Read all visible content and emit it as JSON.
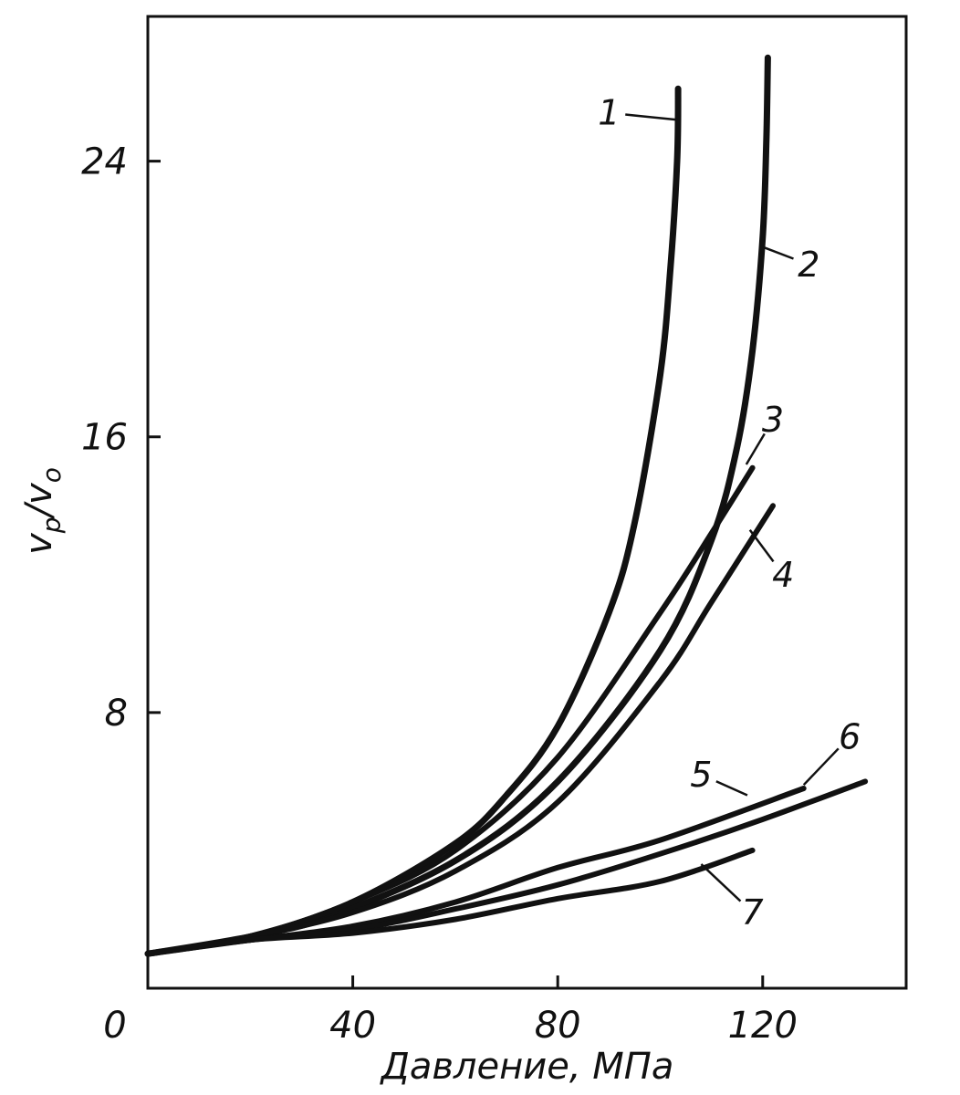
{
  "chart_data": {
    "type": "line",
    "title": "",
    "xlabel": "Давление, МПа",
    "ylabel": "v_p/v_o",
    "ylabel_parts": {
      "main1": "v",
      "sub1": "p",
      "slash": "/",
      "main2": "v",
      "sub2": "o"
    },
    "xlim": [
      0,
      148
    ],
    "ylim": [
      0,
      28.2
    ],
    "x_ticks": [
      {
        "value": 0,
        "label": "0"
      },
      {
        "value": 40,
        "label": "40"
      },
      {
        "value": 80,
        "label": "80"
      },
      {
        "value": 120,
        "label": "120"
      }
    ],
    "y_ticks": [
      {
        "value": 8,
        "label": "8"
      },
      {
        "value": 16,
        "label": "16"
      },
      {
        "value": 24,
        "label": "24"
      }
    ],
    "grid": false,
    "legend": "none",
    "series": [
      {
        "name": "1",
        "x": [
          0,
          20,
          40,
          60,
          70,
          80,
          90,
          95,
          100,
          102,
          103.3,
          103.5
        ],
        "y": [
          1.0,
          1.5,
          2.5,
          4.2,
          5.6,
          7.6,
          10.9,
          13.5,
          17.8,
          20.9,
          24.0,
          26.1
        ]
      },
      {
        "name": "2",
        "x": [
          0,
          20,
          36,
          60,
          80,
          100,
          110,
          115,
          118,
          120,
          120.7,
          121
        ],
        "y": [
          1.0,
          1.5,
          2.1,
          3.7,
          6.0,
          9.8,
          13.0,
          15.7,
          18.5,
          21.8,
          24.5,
          27.0
        ]
      },
      {
        "name": "3",
        "x": [
          0,
          20,
          40,
          60,
          80,
          100,
          110,
          118
        ],
        "y": [
          1.0,
          1.5,
          2.5,
          4.0,
          6.7,
          10.9,
          13.2,
          15.1
        ]
      },
      {
        "name": "4",
        "x": [
          0,
          20,
          40,
          60,
          80,
          100,
          110,
          122
        ],
        "y": [
          1.0,
          1.5,
          2.2,
          3.4,
          5.4,
          8.9,
          11.2,
          14.0
        ]
      },
      {
        "name": "5",
        "x": [
          0,
          20,
          40,
          60,
          80,
          100,
          128
        ],
        "y": [
          1.0,
          1.4,
          1.8,
          2.5,
          3.5,
          4.3,
          5.8
        ]
      },
      {
        "name": "6",
        "x": [
          0,
          20,
          40,
          60,
          80,
          100,
          120,
          140
        ],
        "y": [
          1.0,
          1.4,
          1.7,
          2.3,
          3.0,
          3.9,
          4.9,
          6.0
        ]
      },
      {
        "name": "7",
        "x": [
          0,
          20,
          40,
          60,
          80,
          100,
          118
        ],
        "y": [
          1.0,
          1.4,
          1.6,
          2.0,
          2.6,
          3.1,
          4.0
        ]
      }
    ],
    "curve_labels": [
      {
        "series": "1",
        "text": "1",
        "at": [
          103.3,
          25.2
        ],
        "text_at": [
          90,
          25.4
        ]
      },
      {
        "series": "2",
        "text": "2",
        "at": [
          120.2,
          21.5
        ],
        "text_at": [
          129,
          21.0
        ]
      },
      {
        "series": "3",
        "text": "3",
        "at": [
          116.8,
          15.2
        ],
        "text_at": [
          122,
          16.5
        ]
      },
      {
        "series": "4",
        "text": "4",
        "at": [
          117.5,
          13.3
        ],
        "text_at": [
          124,
          12.0
        ]
      },
      {
        "series": "5",
        "text": "5",
        "at": [
          117,
          5.6
        ],
        "text_at": [
          108,
          6.2
        ]
      },
      {
        "series": "6",
        "text": "6",
        "at": [
          128,
          5.9
        ],
        "text_at": [
          137,
          7.3
        ]
      },
      {
        "series": "7",
        "text": "7",
        "at": [
          108,
          3.6
        ],
        "text_at": [
          118,
          2.2
        ]
      }
    ]
  }
}
